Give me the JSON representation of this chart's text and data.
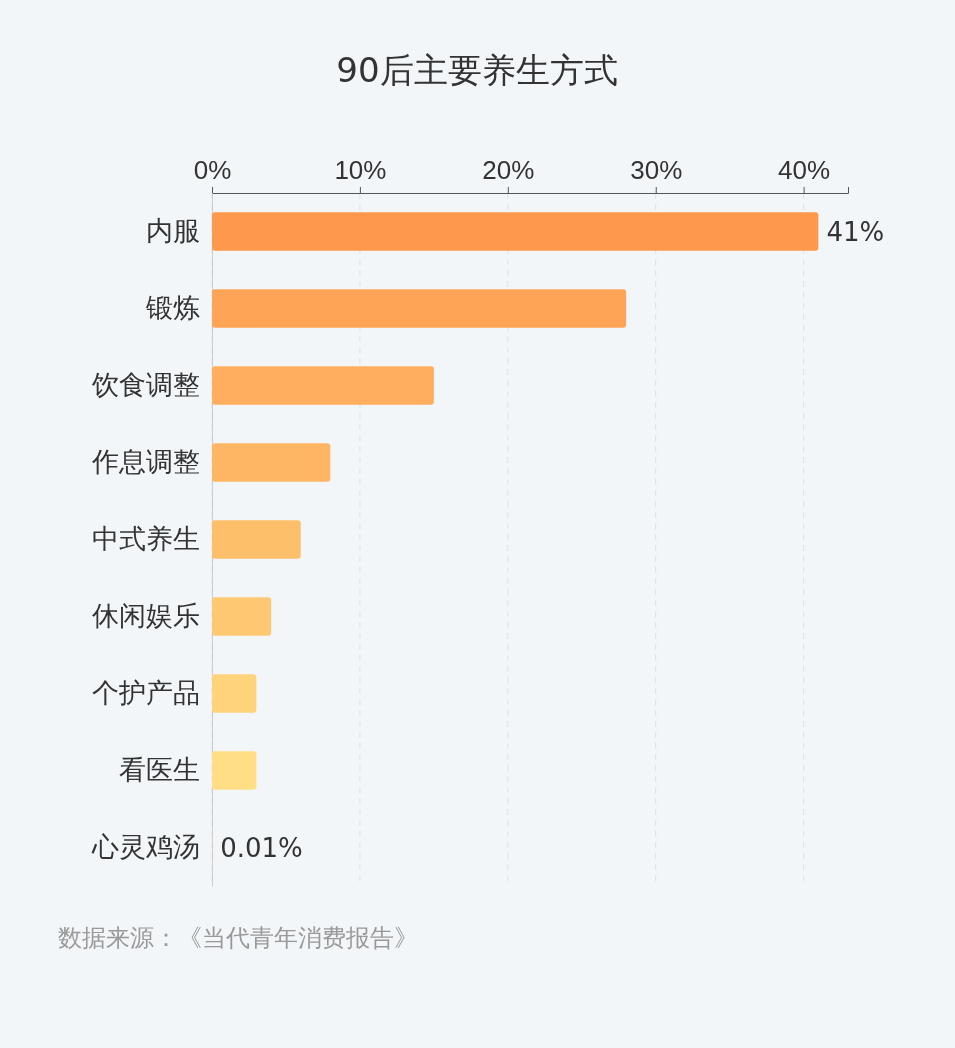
{
  "chart_data": {
    "type": "bar",
    "orientation": "horizontal",
    "title": "90后主要养生方式",
    "categories": [
      "内服",
      "锻炼",
      "饮食调整",
      "作息调整",
      "中式养生",
      "休闲娱乐",
      "个护产品",
      "看医生",
      "心灵鸡汤"
    ],
    "values": [
      41,
      28,
      15,
      8,
      6,
      4,
      3,
      3,
      0.01
    ],
    "value_labels": [
      "41%",
      null,
      null,
      null,
      null,
      null,
      null,
      null,
      "0.01%"
    ],
    "colors": [
      "#fd984d",
      "#fea456",
      "#feae5e",
      "#feb664",
      "#febf6b",
      "#fec873",
      "#ffd27c",
      "#ffde85",
      "#ffe58a"
    ],
    "xlim": [
      0,
      43
    ],
    "xticks": [
      {
        "value": 0,
        "label": "0%"
      },
      {
        "value": 10,
        "label": "10%"
      },
      {
        "value": 20,
        "label": "20%"
      },
      {
        "value": 30,
        "label": "30%"
      },
      {
        "value": 40,
        "label": "40%"
      }
    ],
    "grid": "x",
    "annotations": [
      "数据来源：《当代青年消费报告》"
    ]
  }
}
